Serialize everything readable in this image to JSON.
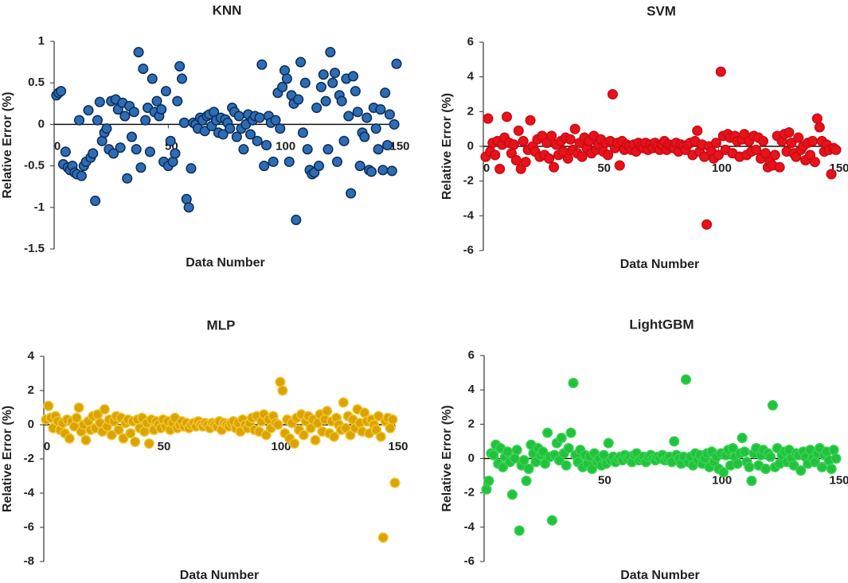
{
  "chart_data": [
    {
      "type": "scatter",
      "title": "KNN",
      "xlabel": "Data Number",
      "ylabel": "Relative Error (%)",
      "color": "#2f6db3",
      "edgecolor": "#0b2d5a",
      "xlim": [
        0,
        150
      ],
      "ylim": [
        -1.5,
        1
      ],
      "xticks": [
        0,
        50,
        100,
        150
      ],
      "yticks": [
        -1.5,
        -1,
        -0.5,
        0,
        0.5,
        1
      ],
      "x": [
        1,
        2,
        3,
        4,
        5,
        6,
        7,
        8,
        9,
        10,
        11,
        12,
        13,
        14,
        15,
        16,
        17,
        18,
        19,
        20,
        21,
        22,
        23,
        24,
        25,
        26,
        27,
        28,
        29,
        30,
        31,
        32,
        33,
        34,
        35,
        36,
        37,
        38,
        39,
        40,
        41,
        42,
        43,
        44,
        45,
        46,
        47,
        48,
        49,
        50,
        51,
        52,
        53,
        54,
        55,
        56,
        57,
        58,
        59,
        60,
        61,
        62,
        63,
        64,
        65,
        66,
        67,
        68,
        69,
        70,
        71,
        72,
        73,
        74,
        75,
        76,
        77,
        78,
        79,
        80,
        81,
        82,
        83,
        84,
        85,
        86,
        87,
        88,
        89,
        90,
        91,
        92,
        93,
        94,
        95,
        96,
        97,
        98,
        99,
        100,
        101,
        102,
        103,
        104,
        105,
        106,
        107,
        108,
        109,
        110,
        111,
        112,
        113,
        114,
        115,
        116,
        117,
        118,
        119,
        120,
        121,
        122,
        123,
        124,
        125,
        126,
        127,
        128,
        129,
        130,
        131,
        132,
        133,
        134,
        135,
        136,
        137,
        138,
        139,
        140,
        141,
        142,
        143,
        144,
        145,
        146,
        147,
        148,
        149,
        150
      ],
      "values": [
        0.35,
        0.38,
        0.4,
        -0.48,
        -0.33,
        -0.52,
        -0.55,
        -0.5,
        -0.58,
        -0.6,
        0.05,
        -0.62,
        -0.5,
        -0.45,
        0.17,
        -0.4,
        -0.35,
        -0.92,
        0.05,
        0.27,
        -0.2,
        -0.1,
        -0.05,
        -0.3,
        0.28,
        -0.35,
        0.3,
        0.18,
        -0.28,
        0.26,
        0.1,
        -0.65,
        0.22,
        -0.15,
        0.15,
        -0.3,
        0.87,
        -0.52,
        0.67,
        0.05,
        0.2,
        -0.33,
        0.55,
        0.15,
        0.28,
        0.1,
        0.18,
        -0.45,
        0.4,
        -0.5,
        -0.2,
        -0.45,
        -0.35,
        0.28,
        0.7,
        0.55,
        0.02,
        -0.9,
        -1.0,
        -0.53,
        0.02,
        0.0,
        -0.05,
        0.08,
        0.05,
        -0.08,
        0.1,
        0.12,
        -0.02,
        0.15,
        0.05,
        -0.1,
        0.08,
        -0.12,
        0.06,
        0.02,
        -0.05,
        0.2,
        0.15,
        -0.15,
        0.1,
        -0.05,
        -0.3,
        0.0,
        0.12,
        -0.12,
        0.05,
        0.1,
        -0.2,
        0.08,
        0.72,
        -0.5,
        -0.25,
        0.1,
        0.02,
        -0.45,
        0.05,
        0.38,
        -0.05,
        0.45,
        0.65,
        0.55,
        -0.45,
        0.35,
        0.25,
        -1.15,
        0.3,
        0.75,
        -0.1,
        0.5,
        -0.3,
        -0.55,
        -0.6,
        -0.58,
        0.2,
        -0.5,
        0.45,
        0.6,
        0.28,
        -0.3,
        0.87,
        0.5,
        0.62,
        -0.45,
        0.35,
        0.28,
        -0.2,
        0.55,
        0.1,
        -0.83,
        0.58,
        0.4,
        0.15,
        -0.5,
        -0.1,
        -0.15,
        0.08,
        -0.55,
        -0.57,
        0.2,
        -0.05,
        -0.3,
        0.18,
        -0.55,
        0.38,
        -0.25,
        0.12,
        -0.56,
        0.0,
        0.73
      ]
    },
    {
      "type": "scatter",
      "title": "SVM",
      "xlabel": "Data Number",
      "ylabel": "Relative Error (%)",
      "color": "#e8121b",
      "edgecolor": "#c80c14",
      "xlim": [
        0,
        150
      ],
      "ylim": [
        -6,
        6
      ],
      "xticks": [
        0,
        50,
        100,
        150
      ],
      "yticks": [
        -6,
        -4,
        -2,
        0,
        2,
        4,
        6
      ],
      "x": [
        1,
        2,
        3,
        4,
        5,
        6,
        7,
        8,
        9,
        10,
        11,
        12,
        13,
        14,
        15,
        16,
        17,
        18,
        19,
        20,
        21,
        22,
        23,
        24,
        25,
        26,
        27,
        28,
        29,
        30,
        31,
        32,
        33,
        34,
        35,
        36,
        37,
        38,
        39,
        40,
        41,
        42,
        43,
        44,
        45,
        46,
        47,
        48,
        49,
        50,
        51,
        52,
        53,
        54,
        55,
        56,
        57,
        58,
        59,
        60,
        61,
        62,
        63,
        64,
        65,
        66,
        67,
        68,
        69,
        70,
        71,
        72,
        73,
        74,
        75,
        76,
        77,
        78,
        79,
        80,
        81,
        82,
        83,
        84,
        85,
        86,
        87,
        88,
        89,
        90,
        91,
        92,
        93,
        94,
        95,
        96,
        97,
        98,
        99,
        100,
        101,
        102,
        103,
        104,
        105,
        106,
        107,
        108,
        109,
        110,
        111,
        112,
        113,
        114,
        115,
        116,
        117,
        118,
        119,
        120,
        121,
        122,
        123,
        124,
        125,
        126,
        127,
        128,
        129,
        130,
        131,
        132,
        133,
        134,
        135,
        136,
        137,
        138,
        139,
        140,
        141,
        142,
        143,
        144,
        145,
        146,
        147,
        148,
        149,
        150
      ],
      "values": [
        -0.6,
        1.6,
        -0.3,
        0.2,
        -0.5,
        0.3,
        -1.3,
        0.1,
        0.5,
        1.7,
        0.2,
        -0.4,
        0.1,
        -0.8,
        0.9,
        -1.3,
        0.3,
        -0.9,
        -0.2,
        1.5,
        0.0,
        -0.3,
        0.4,
        -0.6,
        0.6,
        -0.5,
        0.2,
        -0.7,
        0.6,
        -1.2,
        0.1,
        -0.5,
        0.3,
        -0.3,
        0.5,
        -0.7,
        0.4,
        -0.2,
        1.0,
        -0.4,
        0.2,
        -0.6,
        0.5,
        -0.1,
        0.3,
        -0.4,
        0.6,
        -0.2,
        0.1,
        0.4,
        -0.3,
        0.2,
        -0.5,
        0.3,
        3.0,
        -0.1,
        0.2,
        -1.1,
        0.3,
        -0.2,
        0.1,
        0.0,
        -0.2,
        0.1,
        -0.3,
        0.2,
        0.0,
        -0.1,
        0.2,
        -0.2,
        0.1,
        -0.1,
        0.2,
        0.0,
        -0.2,
        0.1,
        0.3,
        -0.2,
        0.1,
        0.0,
        -0.1,
        0.2,
        -0.3,
        0.1,
        0.0,
        -0.2,
        0.1,
        0.2,
        -0.5,
        0.3,
        0.9,
        -0.3,
        0.1,
        -0.6,
        -4.5,
        0.0,
        -0.3,
        -0.7,
        0.2,
        -0.5,
        4.3,
        0.6,
        -0.2,
        0.7,
        0.5,
        -0.4,
        0.6,
        0.3,
        -0.6,
        0.4,
        0.7,
        -0.5,
        0.3,
        -0.3,
        0.6,
        -0.2,
        0.5,
        -0.7,
        0.3,
        -0.4,
        -1.2,
        -0.9,
        -1.1,
        -0.5,
        0.6,
        -1.2,
        0.3,
        0.7,
        -0.3,
        0.8,
        0.2,
        -0.4,
        -0.6,
        0.5,
        -0.2,
        0.0,
        -0.8,
        0.2,
        -0.5,
        0.3,
        -0.9,
        1.6,
        1.1,
        0.3,
        -0.3,
        0.1,
        -0.2,
        -1.6,
        -0.1,
        -0.2
      ]
    },
    {
      "type": "scatter",
      "title": "MLP",
      "xlabel": "Data Number",
      "ylabel": "Relative Error (%)",
      "color": "#d9a300",
      "edgecolor": "#f2c230",
      "xlim": [
        0,
        150
      ],
      "ylim": [
        -8,
        4
      ],
      "xticks": [
        0,
        50,
        100,
        150
      ],
      "yticks": [
        -8,
        -6,
        -4,
        -2,
        0,
        2,
        4
      ],
      "x": [
        1,
        2,
        3,
        4,
        5,
        6,
        7,
        8,
        9,
        10,
        11,
        12,
        13,
        14,
        15,
        16,
        17,
        18,
        19,
        20,
        21,
        22,
        23,
        24,
        25,
        26,
        27,
        28,
        29,
        30,
        31,
        32,
        33,
        34,
        35,
        36,
        37,
        38,
        39,
        40,
        41,
        42,
        43,
        44,
        45,
        46,
        47,
        48,
        49,
        50,
        51,
        52,
        53,
        54,
        55,
        56,
        57,
        58,
        59,
        60,
        61,
        62,
        63,
        64,
        65,
        66,
        67,
        68,
        69,
        70,
        71,
        72,
        73,
        74,
        75,
        76,
        77,
        78,
        79,
        80,
        81,
        82,
        83,
        84,
        85,
        86,
        87,
        88,
        89,
        90,
        91,
        92,
        93,
        94,
        95,
        96,
        97,
        98,
        99,
        100,
        101,
        102,
        103,
        104,
        105,
        106,
        107,
        108,
        109,
        110,
        111,
        112,
        113,
        114,
        115,
        116,
        117,
        118,
        119,
        120,
        121,
        122,
        123,
        124,
        125,
        126,
        127,
        128,
        129,
        130,
        131,
        132,
        133,
        134,
        135,
        136,
        137,
        138,
        139,
        140,
        141,
        142,
        143,
        144,
        145,
        146,
        147,
        148,
        149,
        150
      ],
      "values": [
        0.3,
        1.1,
        0.4,
        -0.2,
        0.5,
        0.2,
        -0.3,
        0.1,
        -0.5,
        0.3,
        -0.8,
        0.2,
        -0.1,
        0.4,
        1.0,
        -0.4,
        0.0,
        -0.9,
        0.2,
        -0.3,
        0.5,
        -0.2,
        0.6,
        0.1,
        -0.4,
        0.9,
        -0.1,
        0.3,
        -0.6,
        0.2,
        0.5,
        -0.3,
        0.4,
        -0.8,
        0.1,
        0.3,
        -0.5,
        0.2,
        -1.0,
        0.3,
        -0.2,
        0.4,
        -0.4,
        0.1,
        -1.1,
        0.3,
        -0.3,
        0.2,
        0.0,
        -0.2,
        0.3,
        -0.1,
        0.2,
        -0.3,
        0.1,
        0.4,
        -0.2,
        0.0,
        0.2,
        -0.1,
        0.1,
        -0.2,
        0.0,
        0.1,
        -0.1,
        0.2,
        0.0,
        -0.1,
        0.1,
        0.0,
        -0.2,
        0.1,
        0.0,
        -0.1,
        0.2,
        -0.3,
        0.1,
        0.0,
        -0.1,
        0.1,
        0.2,
        -0.2,
        0.1,
        -0.4,
        0.3,
        0.0,
        -0.2,
        0.1,
        0.4,
        -0.3,
        0.5,
        -0.4,
        0.2,
        0.6,
        -0.6,
        0.3,
        -0.2,
        0.5,
        0.1,
        0.0,
        2.5,
        2.0,
        -0.5,
        0.3,
        -0.8,
        0.1,
        -1.1,
        0.4,
        -0.3,
        0.6,
        -0.6,
        0.2,
        0.5,
        -0.2,
        0.3,
        -0.9,
        0.1,
        0.6,
        -0.4,
        0.3,
        0.8,
        -0.5,
        0.2,
        -0.7,
        0.4,
        0.0,
        -0.3,
        1.3,
        -0.2,
        0.5,
        -0.6,
        0.3,
        -0.2,
        0.9,
        0.1,
        -0.4,
        0.7,
        0.2,
        -0.5,
        0.3,
        0.0,
        -0.3,
        0.5,
        -0.7,
        -6.6,
        0.2,
        0.4,
        -0.2,
        0.3,
        -3.4
      ]
    },
    {
      "type": "scatter",
      "title": "LightGBM",
      "xlabel": "Data Number",
      "ylabel": "Relative Error (%)",
      "color": "#22c13e",
      "edgecolor": "#36d350",
      "xlim": [
        0,
        150
      ],
      "ylim": [
        -6,
        6
      ],
      "xticks": [
        0,
        50,
        100,
        150
      ],
      "yticks": [
        -6,
        -4,
        -2,
        0,
        2,
        4,
        6
      ],
      "x": [
        1,
        2,
        3,
        4,
        5,
        6,
        7,
        8,
        9,
        10,
        11,
        12,
        13,
        14,
        15,
        16,
        17,
        18,
        19,
        20,
        21,
        22,
        23,
        24,
        25,
        26,
        27,
        28,
        29,
        30,
        31,
        32,
        33,
        34,
        35,
        36,
        37,
        38,
        39,
        40,
        41,
        42,
        43,
        44,
        45,
        46,
        47,
        48,
        49,
        50,
        51,
        52,
        53,
        54,
        55,
        56,
        57,
        58,
        59,
        60,
        61,
        62,
        63,
        64,
        65,
        66,
        67,
        68,
        69,
        70,
        71,
        72,
        73,
        74,
        75,
        76,
        77,
        78,
        79,
        80,
        81,
        82,
        83,
        84,
        85,
        86,
        87,
        88,
        89,
        90,
        91,
        92,
        93,
        94,
        95,
        96,
        97,
        98,
        99,
        100,
        101,
        102,
        103,
        104,
        105,
        106,
        107,
        108,
        109,
        110,
        111,
        112,
        113,
        114,
        115,
        116,
        117,
        118,
        119,
        120,
        121,
        122,
        123,
        124,
        125,
        126,
        127,
        128,
        129,
        130,
        131,
        132,
        133,
        134,
        135,
        136,
        137,
        138,
        139,
        140,
        141,
        142,
        143,
        144,
        145,
        146,
        147,
        148,
        149,
        150
      ],
      "values": [
        -1.8,
        -1.3,
        0.3,
        0.2,
        0.8,
        -0.3,
        0.6,
        -0.5,
        0.1,
        0.4,
        -0.2,
        -2.1,
        0.0,
        0.5,
        -4.2,
        -0.4,
        -0.1,
        -1.3,
        -0.6,
        0.8,
        0.3,
        -0.2,
        0.6,
        0.2,
        0.4,
        -0.3,
        1.5,
        0.1,
        -3.6,
        0.2,
        0.9,
        -0.1,
        1.2,
        0.3,
        -0.4,
        0.6,
        1.5,
        4.4,
        0.2,
        -0.2,
        0.5,
        -0.5,
        0.2,
        -0.3,
        0.1,
        -0.6,
        0.3,
        -0.2,
        0.0,
        -0.4,
        0.2,
        -0.3,
        0.9,
        -0.1,
        0.1,
        -0.2,
        0.0,
        0.1,
        -0.1,
        0.2,
        0.0,
        0.1,
        -0.2,
        0.2,
        0.3,
        -0.1,
        0.0,
        0.1,
        -0.2,
        0.1,
        0.2,
        0.0,
        -0.1,
        0.1,
        0.0,
        0.2,
        -0.1,
        0.0,
        0.1,
        -0.2,
        1.0,
        0.2,
        0.0,
        -0.3,
        0.1,
        4.6,
        -0.2,
        0.1,
        -0.4,
        0.3,
        -0.1,
        0.2,
        -0.3,
        0.0,
        0.3,
        -0.5,
        0.4,
        -0.2,
        0.1,
        -0.6,
        0.3,
        -0.8,
        0.2,
        0.5,
        -0.4,
        0.6,
        0.1,
        -0.3,
        0.3,
        1.2,
        0.4,
        -0.2,
        -0.5,
        -1.3,
        0.3,
        0.6,
        -0.4,
        0.2,
        0.5,
        -0.6,
        0.3,
        0.1,
        3.1,
        -0.5,
        0.6,
        -0.3,
        0.2,
        0.4,
        -0.2,
        0.5,
        0.0,
        -0.4,
        0.3,
        0.2,
        -0.7,
        0.4,
        0.1,
        -0.3,
        0.5,
        0.0,
        -0.2,
        0.3,
        0.6,
        -0.5,
        0.2,
        0.4,
        -0.1,
        -0.6,
        0.5,
        0.0
      ]
    }
  ]
}
